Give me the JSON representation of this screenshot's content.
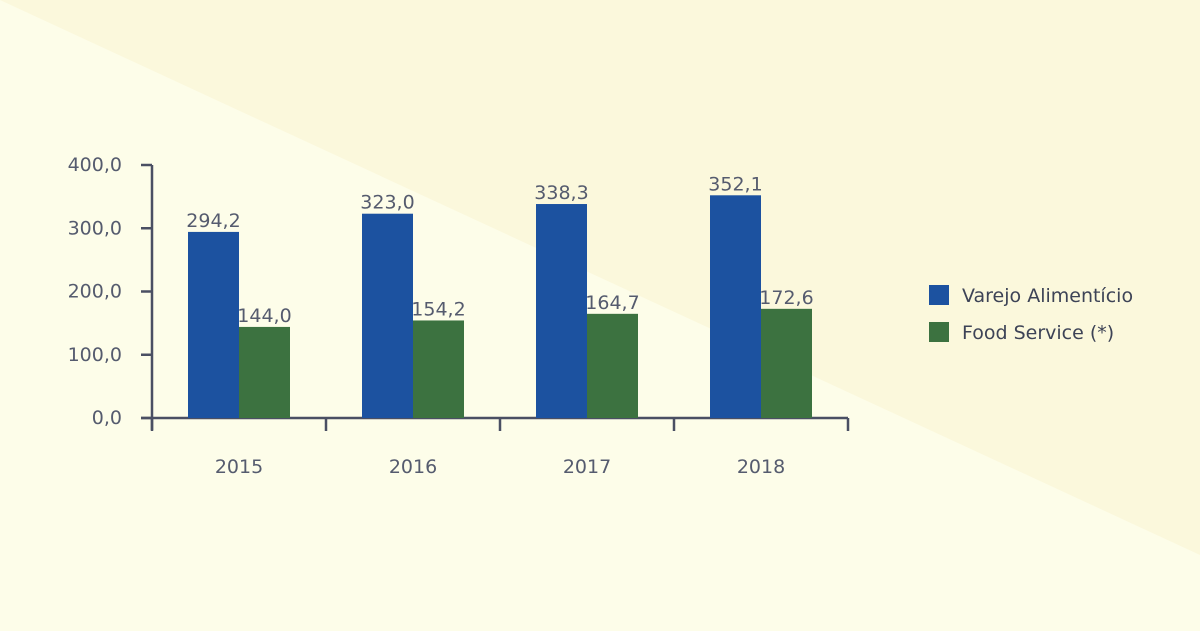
{
  "colors": {
    "background": "#fdfde9",
    "background_band": "#fbf8dc",
    "axis": "#4a4f63",
    "text": "#555b6e"
  },
  "chart_data": {
    "type": "bar",
    "categories": [
      "2015",
      "2016",
      "2017",
      "2018"
    ],
    "series": [
      {
        "name": "Varejo Alimentício",
        "color": "#1c52a0",
        "values": [
          294.2,
          323.0,
          338.3,
          352.1
        ],
        "labels": [
          "294,2",
          "323,0",
          "338,3",
          "352,1"
        ]
      },
      {
        "name": "Food Service (*)",
        "color": "#3c7240",
        "values": [
          144.0,
          154.2,
          164.7,
          172.6
        ],
        "labels": [
          "144,0",
          "154,2",
          "164,7",
          "172,6"
        ]
      }
    ],
    "ylim": [
      0,
      400
    ],
    "yticks": [
      0,
      100,
      200,
      300,
      400
    ],
    "ytick_labels": [
      "0,0",
      "100,0",
      "200,0",
      "300,0",
      "400,0"
    ],
    "legend_position": "right",
    "grid": false
  }
}
